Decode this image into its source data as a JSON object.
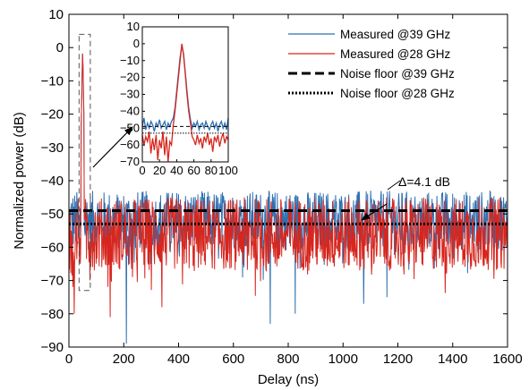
{
  "chart_data": {
    "type": "line",
    "title": "",
    "xlabel": "Delay (ns)",
    "ylabel": "Normalized power (dB)",
    "xlim": [
      0,
      1600
    ],
    "ylim": [
      -90,
      10
    ],
    "xticks": [
      0,
      200,
      400,
      600,
      800,
      1000,
      1200,
      1400,
      1600
    ],
    "yticks": [
      -90,
      -80,
      -70,
      -60,
      -50,
      -40,
      -30,
      -20,
      -10,
      0,
      10
    ],
    "grid": false,
    "legend_position": "top-right",
    "series": [
      {
        "name": "Measured @39 GHz",
        "color": "#2f6fb0",
        "style": "solid",
        "peak": {
          "x": 50,
          "y": 0
        },
        "noise_mean": -52,
        "noise_spread": [
          -89,
          -40
        ],
        "x_range": [
          0,
          1600
        ],
        "dip_values": [
          {
            "x": 210,
            "y": -89
          },
          {
            "x": 735,
            "y": -83
          },
          {
            "x": 825,
            "y": -80
          },
          {
            "x": 1075,
            "y": -77
          },
          {
            "x": 1160,
            "y": -75
          }
        ]
      },
      {
        "name": "Measured @28 GHz",
        "color": "#d7261e",
        "style": "solid",
        "peak": {
          "x": 50,
          "y": 0
        },
        "noise_mean": -56,
        "noise_spread": [
          -81,
          -45
        ],
        "x_range": [
          0,
          1600
        ],
        "dip_values": [
          {
            "x": 20,
            "y": -80
          },
          {
            "x": 150,
            "y": -81
          },
          {
            "x": 340,
            "y": -78
          }
        ]
      },
      {
        "name": "Noise floor @39 GHz",
        "color": "#000000",
        "style": "dashed",
        "y": -49
      },
      {
        "name": "Noise floor @28 GHz",
        "color": "#000000",
        "style": "dotted",
        "y": -53
      }
    ],
    "annotations": [
      {
        "text": "Δ=4.1 dB",
        "x": 1210,
        "y": -42.5
      }
    ],
    "highlight_box": {
      "x_range": [
        37,
        78
      ],
      "y_range": [
        -73,
        4
      ]
    },
    "inset": {
      "xlim": [
        0,
        100
      ],
      "ylim": [
        -70,
        10
      ],
      "xticks": [
        0,
        20,
        40,
        60,
        80,
        100
      ],
      "yticks": [
        -70,
        -60,
        -50,
        -40,
        -30,
        -20,
        -10,
        0,
        10
      ],
      "noise_floor_39": -49,
      "noise_floor_28": -53,
      "blue_points": [
        [
          0,
          -49
        ],
        [
          2,
          -44
        ],
        [
          4,
          -51
        ],
        [
          6,
          -47
        ],
        [
          8,
          -50
        ],
        [
          10,
          -46
        ],
        [
          12,
          -48
        ],
        [
          14,
          -52
        ],
        [
          16,
          -47
        ],
        [
          18,
          -49
        ],
        [
          20,
          -45
        ],
        [
          22,
          -50
        ],
        [
          24,
          -48
        ],
        [
          26,
          -46
        ],
        [
          28,
          -51
        ],
        [
          30,
          -47
        ],
        [
          32,
          -49
        ],
        [
          34,
          -46
        ],
        [
          36,
          -44
        ],
        [
          38,
          -38
        ],
        [
          40,
          -28
        ],
        [
          42,
          -18
        ],
        [
          44,
          -8
        ],
        [
          46,
          -1
        ],
        [
          48,
          -6
        ],
        [
          50,
          -17
        ],
        [
          52,
          -28
        ],
        [
          54,
          -38
        ],
        [
          56,
          -45
        ],
        [
          58,
          -50
        ],
        [
          60,
          -47
        ],
        [
          62,
          -49
        ],
        [
          64,
          -46
        ],
        [
          66,
          -51
        ],
        [
          68,
          -48
        ],
        [
          70,
          -47
        ],
        [
          72,
          -50
        ],
        [
          74,
          -46
        ],
        [
          76,
          -49
        ],
        [
          78,
          -51
        ],
        [
          80,
          -48
        ],
        [
          82,
          -46
        ],
        [
          84,
          -50
        ],
        [
          86,
          -47
        ],
        [
          88,
          -52
        ],
        [
          90,
          -48
        ],
        [
          92,
          -46
        ],
        [
          94,
          -50
        ],
        [
          96,
          -47
        ],
        [
          98,
          -51
        ],
        [
          100,
          -44
        ]
      ],
      "red_points": [
        [
          0,
          -54
        ],
        [
          2,
          -60
        ],
        [
          4,
          -55
        ],
        [
          6,
          -58
        ],
        [
          8,
          -52
        ],
        [
          10,
          -65
        ],
        [
          12,
          -56
        ],
        [
          14,
          -63
        ],
        [
          16,
          -54
        ],
        [
          18,
          -69
        ],
        [
          20,
          -57
        ],
        [
          22,
          -62
        ],
        [
          24,
          -52
        ],
        [
          26,
          -66
        ],
        [
          28,
          -55
        ],
        [
          30,
          -70
        ],
        [
          32,
          -58
        ],
        [
          34,
          -60
        ],
        [
          36,
          -48
        ],
        [
          38,
          -40
        ],
        [
          40,
          -30
        ],
        [
          42,
          -20
        ],
        [
          44,
          -10
        ],
        [
          46,
          0
        ],
        [
          48,
          -7
        ],
        [
          50,
          -18
        ],
        [
          52,
          -30
        ],
        [
          54,
          -40
        ],
        [
          56,
          -47
        ],
        [
          58,
          -55
        ],
        [
          60,
          -57
        ],
        [
          62,
          -60
        ],
        [
          64,
          -54
        ],
        [
          66,
          -59
        ],
        [
          68,
          -56
        ],
        [
          70,
          -62
        ],
        [
          72,
          -55
        ],
        [
          74,
          -58
        ],
        [
          76,
          -53
        ],
        [
          78,
          -60
        ],
        [
          80,
          -56
        ],
        [
          82,
          -64
        ],
        [
          84,
          -55
        ],
        [
          86,
          -58
        ],
        [
          88,
          -54
        ],
        [
          90,
          -61
        ],
        [
          92,
          -56
        ],
        [
          94,
          -53
        ],
        [
          96,
          -59
        ],
        [
          98,
          -55
        ],
        [
          100,
          -57
        ]
      ]
    }
  }
}
